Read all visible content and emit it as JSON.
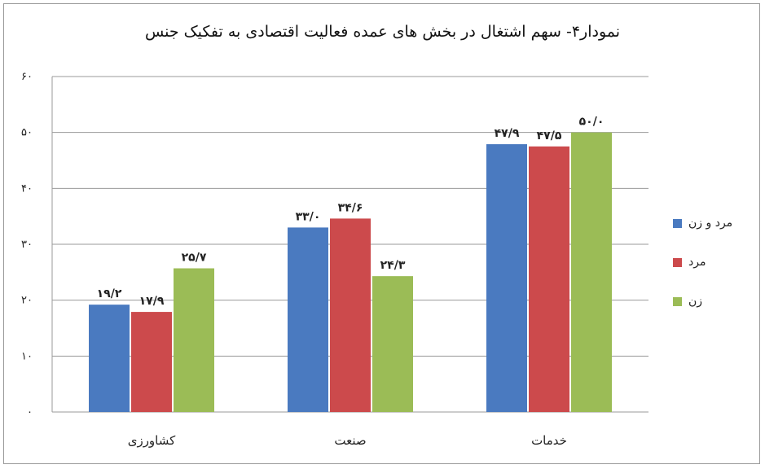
{
  "chart_data": {
    "type": "bar",
    "title": "نمودار۴- سهم اشتغال در بخش های عمده فعالیت اقتصادی به تفکیک جنس",
    "categories": [
      "کشاورزی",
      "صنعت",
      "خدمات"
    ],
    "series": [
      {
        "name": "مرد و زن",
        "color": "#4a7ac0",
        "values": [
          19.2,
          33.0,
          47.9
        ],
        "labels": [
          "۱۹/۲",
          "۳۳/۰",
          "۴۷/۹"
        ]
      },
      {
        "name": "مرد",
        "color": "#cc4a4c",
        "values": [
          17.9,
          34.6,
          47.5
        ],
        "labels": [
          "۱۷/۹",
          "۳۴/۶",
          "۴۷/۵"
        ]
      },
      {
        "name": "زن",
        "color": "#9bbc56",
        "values": [
          25.7,
          24.3,
          50.0
        ],
        "labels": [
          "۲۵/۷",
          "۲۴/۳",
          "۵۰/۰"
        ]
      }
    ],
    "yticks": [
      0,
      10,
      20,
      30,
      40,
      50,
      60
    ],
    "ytick_labels": [
      "۰",
      "۱۰",
      "۲۰",
      "۳۰",
      "۴۰",
      "۵۰",
      "۶۰"
    ],
    "ylim": [
      0,
      60
    ],
    "grid": true,
    "legend": "right"
  }
}
